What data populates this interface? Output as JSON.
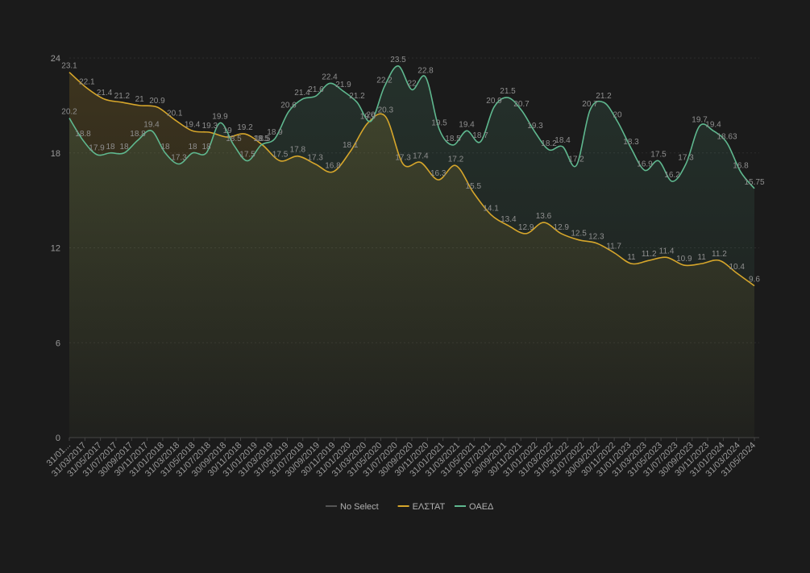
{
  "chart_data": {
    "type": "area",
    "title": "",
    "xlabel": "",
    "ylabel": "",
    "ylim": [
      0,
      24
    ],
    "yticks": [
      0,
      6,
      12,
      18,
      24
    ],
    "grid": true,
    "legend_position": "bottom",
    "categories": [
      "31/01/2017",
      "28/02/2017",
      "31/03/2017",
      "30/04/2017",
      "31/05/2017",
      "30/06/2017",
      "31/07/2017",
      "31/08/2017",
      "30/09/2017",
      "31/10/2017",
      "30/11/2017",
      "31/12/2017",
      "31/01/2018",
      "28/02/2018",
      "31/03/2018",
      "30/04/2018",
      "31/05/2018",
      "30/06/2018",
      "31/07/2018",
      "31/08/2018",
      "30/09/2018",
      "31/10/2018",
      "30/11/2018",
      "31/12/2018",
      "31/01/2019",
      "28/02/2019",
      "31/03/2019",
      "30/04/2019",
      "31/05/2019",
      "30/06/2019",
      "31/07/2019",
      "31/08/2019",
      "30/09/2019",
      "31/10/2019",
      "30/11/2019",
      "31/12/2019",
      "31/01/2020",
      "29/02/2020",
      "31/03/2020",
      "30/04/2020",
      "31/05/2020",
      "30/06/2020",
      "31/07/2020",
      "31/08/2020",
      "30/09/2020",
      "31/10/2020",
      "30/11/2020",
      "31/12/2020",
      "31/01/2021",
      "28/02/2021",
      "31/03/2021",
      "30/04/2021",
      "31/05/2021",
      "30/06/2021",
      "31/07/2021",
      "31/08/2021",
      "30/09/2021",
      "31/10/2021",
      "30/11/2021",
      "31/12/2021",
      "31/01/2022",
      "28/02/2022",
      "31/03/2022",
      "30/04/2022",
      "31/05/2022",
      "30/06/2022",
      "31/07/2022",
      "31/08/2022",
      "30/09/2022",
      "31/10/2022",
      "30/11/2022",
      "31/12/2022",
      "31/01/2023",
      "28/02/2023",
      "31/03/2023",
      "30/04/2023",
      "31/05/2023",
      "30/06/2023",
      "31/07/2023",
      "31/08/2023",
      "30/09/2023",
      "31/10/2023",
      "30/11/2023",
      "31/12/2023",
      "31/01/2024",
      "29/02/2024",
      "31/03/2024",
      "30/04/2024",
      "31/05/2024",
      "30/06/2024"
    ],
    "x_tick_labels": [
      "31/01...",
      "31/03/2017",
      "31/05/2017",
      "31/07/2017",
      "30/09/2017",
      "30/11/2017",
      "31/01/2018",
      "31/03/2018",
      "31/05/2018",
      "31/07/2018",
      "30/09/2018",
      "30/11/2018",
      "31/01/2019",
      "31/03/2019",
      "31/05/2019",
      "31/07/2019",
      "30/09/2019",
      "30/11/2019",
      "31/01/2020",
      "31/03/2020",
      "31/05/2020",
      "31/07/2020",
      "30/09/2020",
      "30/11/2020",
      "31/01/2021",
      "31/03/2021",
      "31/05/2021",
      "31/07/2021",
      "30/09/2021",
      "30/11/2021",
      "31/01/2022",
      "31/03/2022",
      "31/05/2022",
      "31/07/2022",
      "30/09/2022",
      "30/11/2022",
      "31/01/2023",
      "31/03/2023",
      "31/05/2023",
      "31/07/2023",
      "30/09/2023",
      "30/11/2023",
      "31/01/2024",
      "31/03/2024",
      "31/05/2024"
    ],
    "series": [
      {
        "name": "ΕΛΣΤΑΤ",
        "color": "#d6a62b",
        "values": [
          23.1,
          22.9,
          22.1,
          22.3,
          21.4,
          21.3,
          21.2,
          21.2,
          21,
          20.9,
          20.6,
          20.1,
          19.9,
          19.6,
          19.4,
          19.3,
          19.1,
          19,
          19.4,
          19.2,
          18.8,
          18.5,
          17.5,
          17.8,
          17.5,
          17.3,
          17.1,
          16.8,
          17.5,
          18.1,
          20.3,
          17.3,
          17.2,
          17.4,
          17.0,
          16.3,
          17.2,
          16.5,
          15.5,
          14.1,
          13.4,
          12.9,
          13.6,
          12.9,
          12.5,
          12.3,
          12.3,
          11.7,
          11.5,
          11.2,
          11,
          11.2,
          11.4,
          11.2,
          11.3,
          10.9,
          11,
          11.2,
          10.4,
          9.6,
          9.8,
          9.7,
          9.6,
          9.6,
          9.6,
          9.6,
          9.6,
          9.6,
          9.6,
          9.6,
          9.6,
          9.6,
          9.6,
          9.6,
          9.6,
          9.6,
          9.6,
          9.6,
          9.6,
          9.6,
          9.6,
          9.6,
          9.6,
          9.6,
          9.6,
          9.6,
          9.6,
          9.6,
          9.6,
          9.6
        ]
      },
      {
        "name": "ΟΑΕΔ",
        "color": "#5fb88f",
        "values": [
          20.2,
          19.6,
          18.8,
          17.9,
          18,
          18,
          18.8,
          19.4,
          18,
          17.3,
          18,
          18,
          19,
          19.2,
          19.9,
          18.5,
          17.5,
          17.8,
          18.5,
          17.3,
          18.9,
          20.6,
          21.4,
          21.6,
          22.4,
          21.9,
          21.2,
          20,
          22.2,
          23.5,
          22,
          22.8,
          19.5,
          18.5,
          19.4,
          18.7,
          20.9,
          21.5,
          20.7,
          19.3,
          18.2,
          18.4,
          17.2,
          20.7,
          21.2,
          20,
          18.3,
          16.9,
          17.5,
          16.2,
          17.3,
          19.7,
          19.4,
          18.63,
          16.8,
          15.75,
          15.75,
          15.75,
          15.75,
          15.75,
          15.75,
          15.75,
          15.75,
          15.75,
          15.75,
          15.75,
          15.75,
          15.75,
          15.75,
          15.75,
          15.75,
          15.75,
          15.75,
          15.75,
          15.75,
          15.75,
          15.75,
          15.75,
          15.75,
          15.75,
          15.75,
          15.75,
          15.75,
          15.75,
          15.75,
          15.75,
          15.75,
          15.75,
          15.75,
          15.75
        ]
      }
    ],
    "elstat_points": [
      {
        "v": 23.1,
        "label": "23.1"
      },
      {
        "v": 22.1,
        "label": "22.1"
      },
      {
        "v": 21.4,
        "label": "21.4"
      },
      {
        "v": 21.2,
        "label": "21.2"
      },
      {
        "v": 21,
        "label": "21"
      },
      {
        "v": 20.9,
        "label": "20.9"
      },
      {
        "v": 20.1,
        "label": "20.1"
      },
      {
        "v": 19.4,
        "label": "19.4"
      },
      {
        "v": 19.3,
        "label": "19.3"
      },
      {
        "v": 19,
        "label": "19"
      },
      {
        "v": 19.2,
        "label": "19.2"
      },
      {
        "v": 18.5,
        "label": "18.5"
      },
      {
        "v": 17.5,
        "label": "17.5"
      },
      {
        "v": 17.8,
        "label": "17.8"
      },
      {
        "v": 17.3,
        "label": "17.3"
      },
      {
        "v": 16.8,
        "label": "16.8"
      },
      {
        "v": 18.1,
        "label": "18.1"
      },
      {
        "v": 19.9,
        "label": "19.9"
      },
      {
        "v": 20.3,
        "label": "20.3"
      },
      {
        "v": 17.3,
        "label": "17.3"
      },
      {
        "v": 17.4,
        "label": "17.4"
      },
      {
        "v": 16.3,
        "label": "16.3"
      },
      {
        "v": 17.2,
        "label": "17.2"
      },
      {
        "v": 15.5,
        "label": "15.5"
      },
      {
        "v": 14.1,
        "label": "14.1"
      },
      {
        "v": 13.4,
        "label": "13.4"
      },
      {
        "v": 12.9,
        "label": "12.9"
      },
      {
        "v": 13.6,
        "label": "13.6"
      },
      {
        "v": 12.9,
        "label": "12.9"
      },
      {
        "v": 12.5,
        "label": "12.5"
      },
      {
        "v": 12.3,
        "label": "12.3"
      },
      {
        "v": 11.7,
        "label": "11.7"
      },
      {
        "v": 11,
        "label": "11"
      },
      {
        "v": 11.2,
        "label": "11.2"
      },
      {
        "v": 11.4,
        "label": "11.4"
      },
      {
        "v": 10.9,
        "label": "10.9"
      },
      {
        "v": 11,
        "label": "11"
      },
      {
        "v": 11.2,
        "label": "11.2"
      },
      {
        "v": 10.4,
        "label": "10.4"
      },
      {
        "v": 9.6,
        "label": "9.6"
      }
    ],
    "oaed_points": [
      {
        "v": 20.2,
        "label": "20.2"
      },
      {
        "v": 18.8,
        "label": "18.8"
      },
      {
        "v": 17.9,
        "label": "17.9"
      },
      {
        "v": 18,
        "label": "18"
      },
      {
        "v": 18,
        "label": "18"
      },
      {
        "v": 18.8,
        "label": "18.8"
      },
      {
        "v": 19.4,
        "label": "19.4"
      },
      {
        "v": 18,
        "label": "18"
      },
      {
        "v": 17.3,
        "label": "17.3"
      },
      {
        "v": 18,
        "label": "18"
      },
      {
        "v": 18,
        "label": "18"
      },
      {
        "v": 19.9,
        "label": "19.9"
      },
      {
        "v": 18.5,
        "label": "18.5"
      },
      {
        "v": 17.5,
        "label": "17.5"
      },
      {
        "v": 18.5,
        "label": "18.5"
      },
      {
        "v": 18.9,
        "label": "18.9"
      },
      {
        "v": 20.6,
        "label": "20.6"
      },
      {
        "v": 21.4,
        "label": "21.4"
      },
      {
        "v": 21.6,
        "label": "21.6"
      },
      {
        "v": 22.4,
        "label": "22.4"
      },
      {
        "v": 21.9,
        "label": "21.9"
      },
      {
        "v": 21.2,
        "label": "21.2"
      },
      {
        "v": 20,
        "label": "20"
      },
      {
        "v": 22.2,
        "label": "22.2"
      },
      {
        "v": 23.5,
        "label": "23.5"
      },
      {
        "v": 22,
        "label": "22"
      },
      {
        "v": 22.8,
        "label": "22.8"
      },
      {
        "v": 19.5,
        "label": "19.5"
      },
      {
        "v": 18.5,
        "label": "18.5"
      },
      {
        "v": 19.4,
        "label": "19.4"
      },
      {
        "v": 18.7,
        "label": "18.7"
      },
      {
        "v": 20.9,
        "label": "20.9"
      },
      {
        "v": 21.5,
        "label": "21.5"
      },
      {
        "v": 20.7,
        "label": "20.7"
      },
      {
        "v": 19.3,
        "label": "19.3"
      },
      {
        "v": 18.2,
        "label": "18.2"
      },
      {
        "v": 18.4,
        "label": "18.4"
      },
      {
        "v": 17.2,
        "label": "17.2"
      },
      {
        "v": 20.7,
        "label": "20.7"
      },
      {
        "v": 21.2,
        "label": "21.2"
      },
      {
        "v": 20,
        "label": "20"
      },
      {
        "v": 18.3,
        "label": "18.3"
      },
      {
        "v": 16.9,
        "label": "16.9"
      },
      {
        "v": 17.5,
        "label": "17.5"
      },
      {
        "v": 16.2,
        "label": "16.2"
      },
      {
        "v": 17.3,
        "label": "17.3"
      },
      {
        "v": 19.7,
        "label": "19.7"
      },
      {
        "v": 19.4,
        "label": "19.4"
      },
      {
        "v": 18.63,
        "label": "18.63"
      },
      {
        "v": 16.8,
        "label": "16.8"
      },
      {
        "v": 15.75,
        "label": "15.75"
      }
    ],
    "legend": [
      {
        "name": "No Select",
        "color": "#555555"
      },
      {
        "name": "ΕΛΣΤΑΤ",
        "color": "#d6a62b"
      },
      {
        "name": "ΟΑΕΔ",
        "color": "#5fb88f"
      }
    ]
  }
}
